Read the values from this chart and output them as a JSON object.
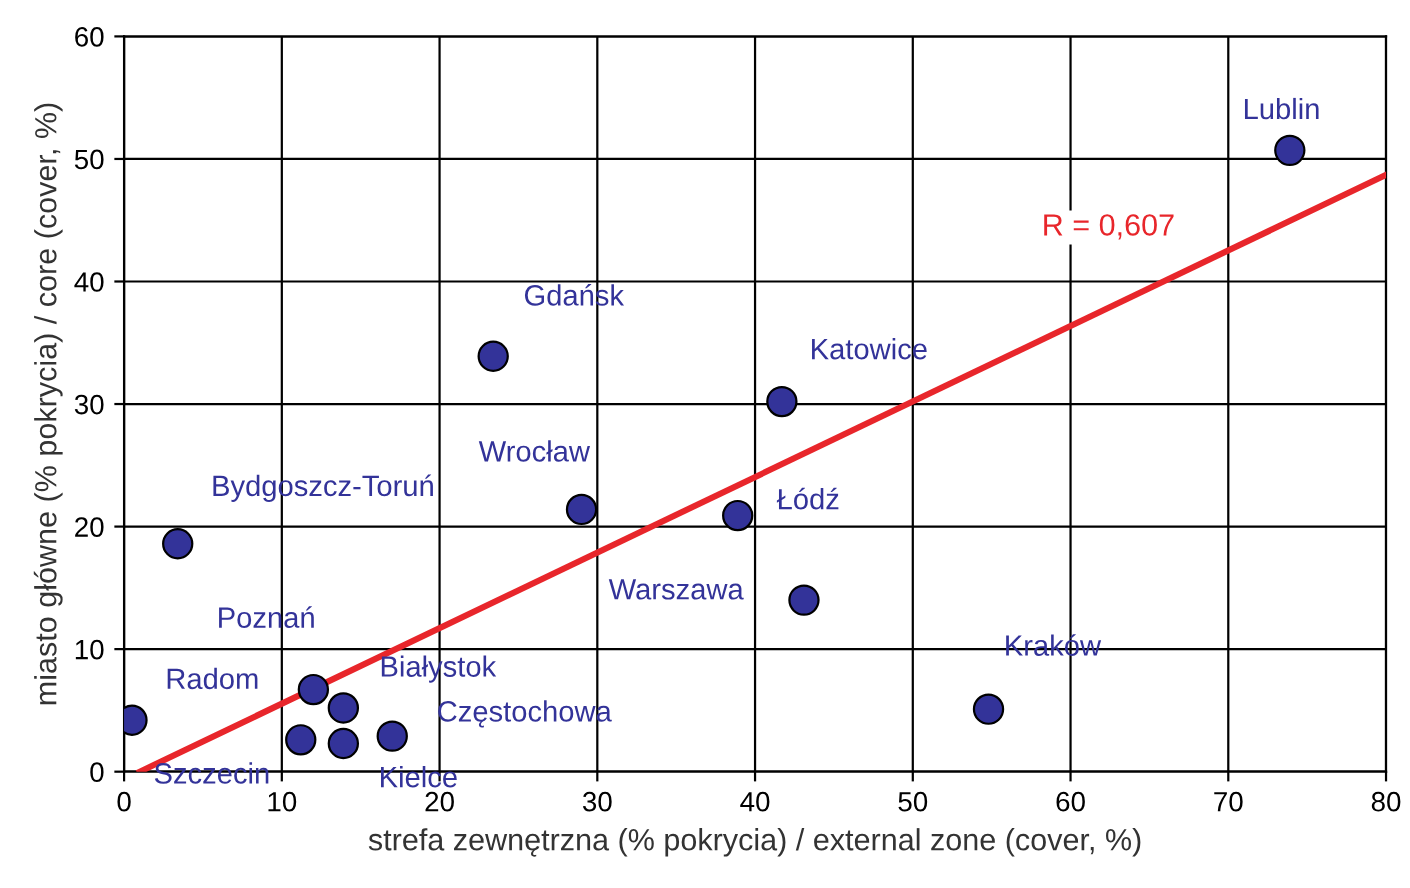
{
  "chart_data": {
    "type": "scatter",
    "xlabel": "strefa zewnętrzna (% pokrycia) / external zone (cover, %)",
    "ylabel": "miasto główne (% pokrycia) / core (cover, %)",
    "xlim": [
      0,
      80
    ],
    "ylim": [
      0,
      60
    ],
    "xticks": [
      0,
      10,
      20,
      30,
      40,
      50,
      60,
      70,
      80
    ],
    "yticks": [
      0,
      10,
      20,
      30,
      40,
      50,
      60
    ],
    "grid": true,
    "marker": "circle",
    "series": [
      {
        "color": "#333399",
        "x": [
          0.5,
          3.4,
          12.0,
          11.2,
          13.9,
          13.9,
          17.0,
          23.4,
          29.0,
          38.9,
          41.7,
          43.1,
          54.8,
          73.9
        ],
        "values": [
          4.2,
          18.6,
          6.7,
          2.6,
          2.3,
          5.2,
          2.9,
          33.9,
          21.4,
          20.9,
          30.2,
          14.0,
          5.1,
          50.7
        ]
      },
      {
        "type": "line",
        "marker": "none",
        "color": "#e8262b",
        "x": [
          1,
          80
        ],
        "values": [
          0,
          48.7
        ]
      }
    ],
    "annotations": [
      {
        "text": "Radom",
        "x": 0.5,
        "y": 4.2
      },
      {
        "text": "Bydgoszcz-Toruń",
        "x": 3.4,
        "y": 18.6
      },
      {
        "text": "Poznań",
        "x": 12.0,
        "y": 6.7
      },
      {
        "text": "Szczecin",
        "x": 11.2,
        "y": 2.6
      },
      {
        "text": "Kielce",
        "x": 13.9,
        "y": 2.3
      },
      {
        "text": "Białystok",
        "x": 13.9,
        "y": 5.2
      },
      {
        "text": "Częstochowa",
        "x": 17.0,
        "y": 2.9
      },
      {
        "text": "Gdańsk",
        "x": 23.4,
        "y": 33.9
      },
      {
        "text": "Wrocław",
        "x": 29.0,
        "y": 21.4
      },
      {
        "text": "Łódź",
        "x": 38.9,
        "y": 20.9
      },
      {
        "text": "Katowice",
        "x": 41.7,
        "y": 30.2
      },
      {
        "text": "Warszawa",
        "x": 43.1,
        "y": 14.0
      },
      {
        "text": "Kraków",
        "x": 54.8,
        "y": 5.1
      },
      {
        "text": "Lublin",
        "x": 73.9,
        "y": 50.7
      },
      "R = 0,607"
    ]
  }
}
